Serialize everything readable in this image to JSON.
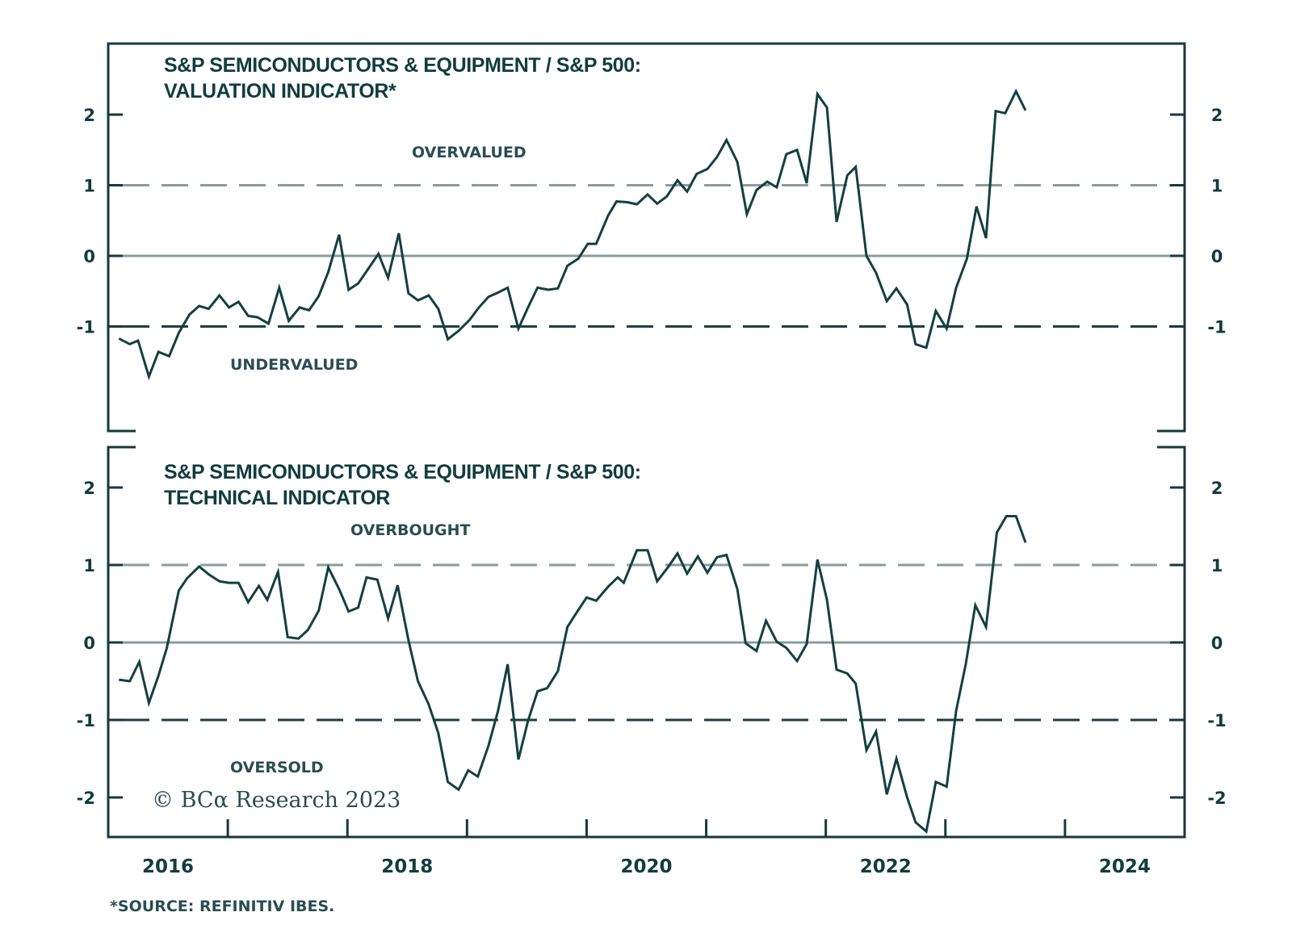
{
  "colors": {
    "axis": "#16393b",
    "series": "#143f42",
    "zero_line": "#8a9c9c",
    "upper_dash": "#8a9c9c",
    "lower_dash": "#1d3f41",
    "text": "#123c3e"
  },
  "footnote": "*SOURCE: REFINITIV IBES.",
  "copyright": "© BCα Research 2023",
  "chart_data": [
    {
      "type": "line",
      "title_line1": "S&P SEMICONDUCTORS & EQUIPMENT / S&P 500:",
      "title_line2": "VALUATION INDICATOR*",
      "upper_zone_label": "OVERVALUED",
      "lower_zone_label": "UNDERVALUED",
      "xlabel": "",
      "ylabel": "",
      "xlim": [
        2016,
        2025
      ],
      "ylim": [
        -2.4,
        2.5
      ],
      "yticks": [
        2,
        1,
        0,
        -1
      ],
      "ytick_labels": [
        "2",
        "1",
        "0",
        "-1"
      ],
      "reference_lines": [
        {
          "value": 1,
          "style": "dashed"
        },
        {
          "value": 0,
          "style": "solid"
        },
        {
          "value": -1,
          "style": "dashed"
        }
      ],
      "grid": false,
      "series": [
        {
          "name": "Valuation Indicator",
          "x": [
            2016.09,
            2016.18,
            2016.25,
            2016.34,
            2016.42,
            2016.51,
            2016.59,
            2016.68,
            2016.76,
            2016.84,
            2016.93,
            2017.01,
            2017.09,
            2017.17,
            2017.25,
            2017.34,
            2017.43,
            2017.51,
            2017.6,
            2017.68,
            2017.76,
            2017.84,
            2017.93,
            2018.01,
            2018.09,
            2018.18,
            2018.26,
            2018.34,
            2018.43,
            2018.51,
            2018.59,
            2018.68,
            2018.76,
            2018.84,
            2018.93,
            2019.02,
            2019.1,
            2019.18,
            2019.26,
            2019.34,
            2019.43,
            2019.51,
            2019.59,
            2019.68,
            2019.76,
            2019.84,
            2019.93,
            2020.01,
            2020.08,
            2020.18,
            2020.25,
            2020.34,
            2020.42,
            2020.51,
            2020.59,
            2020.67,
            2020.76,
            2020.84,
            2020.92,
            2021.01,
            2021.09,
            2021.17,
            2021.26,
            2021.34,
            2021.42,
            2021.51,
            2021.59,
            2021.67,
            2021.76,
            2021.84,
            2021.93,
            2022.01,
            2022.09,
            2022.18,
            2022.25,
            2022.34,
            2022.42,
            2022.51,
            2022.59,
            2022.68,
            2022.75,
            2022.84,
            2022.92,
            2023.01,
            2023.09,
            2023.18,
            2023.26,
            2023.34,
            2023.42,
            2023.5,
            2023.59,
            2023.67
          ],
          "y": [
            -1.17,
            -1.25,
            -1.2,
            -1.71,
            -1.36,
            -1.42,
            -1.09,
            -0.83,
            -0.71,
            -0.75,
            -0.56,
            -0.73,
            -0.65,
            -0.85,
            -0.87,
            -0.96,
            -0.45,
            -0.92,
            -0.73,
            -0.77,
            -0.57,
            -0.23,
            0.3,
            -0.48,
            -0.39,
            -0.17,
            0.03,
            -0.31,
            0.32,
            -0.53,
            -0.63,
            -0.56,
            -0.75,
            -1.18,
            -1.06,
            -0.91,
            -0.73,
            -0.58,
            -0.52,
            -0.45,
            -1.03,
            -0.73,
            -0.45,
            -0.48,
            -0.46,
            -0.14,
            -0.04,
            0.17,
            0.17,
            0.57,
            0.77,
            0.76,
            0.73,
            0.87,
            0.74,
            0.84,
            1.07,
            0.91,
            1.16,
            1.23,
            1.4,
            1.64,
            1.33,
            0.59,
            0.93,
            1.05,
            0.97,
            1.44,
            1.5,
            1.03,
            2.29,
            2.1,
            0.48,
            1.14,
            1.26,
            0.0,
            -0.24,
            -0.64,
            -0.46,
            -0.69,
            -1.25,
            -1.3,
            -0.78,
            -1.03,
            -0.45,
            -0.04,
            0.7,
            0.25,
            2.05,
            2.02,
            2.33,
            2.06
          ]
        }
      ]
    },
    {
      "type": "line",
      "title_line1": "S&P SEMICONDUCTORS & EQUIPMENT / S&P 500:",
      "title_line2": "TECHNICAL INDICATOR",
      "upper_zone_label": "OVERBOUGHT",
      "lower_zone_label": "OVERSOLD",
      "xlabel": "",
      "ylabel": "",
      "xlim": [
        2016,
        2025
      ],
      "ylim": [
        -2.5,
        2.5
      ],
      "yticks": [
        2,
        1,
        0,
        -1,
        -2
      ],
      "ytick_labels": [
        "2",
        "1",
        "0",
        "-1",
        "-2"
      ],
      "xticks": [
        2017,
        2018,
        2019,
        2020,
        2021,
        2022,
        2023,
        2024
      ],
      "xtick_labels": [
        {
          "label": "2016",
          "at": 2016.5
        },
        {
          "label": "2018",
          "at": 2018.5
        },
        {
          "label": "2020",
          "at": 2020.5
        },
        {
          "label": "2022",
          "at": 2022.5
        },
        {
          "label": "2024",
          "at": 2024.5
        }
      ],
      "reference_lines": [
        {
          "value": 1,
          "style": "dashed"
        },
        {
          "value": 0,
          "style": "solid"
        },
        {
          "value": -1,
          "style": "dashed"
        }
      ],
      "grid": false,
      "series": [
        {
          "name": "Technical Indicator",
          "x": [
            2016.09,
            2016.18,
            2016.26,
            2016.34,
            2016.42,
            2016.49,
            2016.59,
            2016.66,
            2016.76,
            2016.84,
            2016.93,
            2017.01,
            2017.09,
            2017.17,
            2017.26,
            2017.33,
            2017.42,
            2017.5,
            2017.59,
            2017.67,
            2017.76,
            2017.84,
            2017.93,
            2018.01,
            2018.09,
            2018.16,
            2018.25,
            2018.34,
            2018.42,
            2018.51,
            2018.59,
            2018.68,
            2018.76,
            2018.84,
            2018.93,
            2019.01,
            2019.09,
            2019.18,
            2019.26,
            2019.34,
            2019.43,
            2019.51,
            2019.59,
            2019.67,
            2019.76,
            2019.84,
            2019.91,
            2020.0,
            2020.08,
            2020.18,
            2020.26,
            2020.31,
            2020.42,
            2020.51,
            2020.59,
            2020.68,
            2020.76,
            2020.84,
            2020.93,
            2021.01,
            2021.09,
            2021.17,
            2021.26,
            2021.33,
            2021.42,
            2021.5,
            2021.59,
            2021.67,
            2021.76,
            2021.84,
            2021.93,
            2022.01,
            2022.09,
            2022.18,
            2022.25,
            2022.34,
            2022.42,
            2022.51,
            2022.59,
            2022.68,
            2022.75,
            2022.84,
            2022.92,
            2023.01,
            2023.09,
            2023.17,
            2023.25,
            2023.34,
            2023.43,
            2023.51,
            2023.59,
            2023.67
          ],
          "y": [
            -0.48,
            -0.5,
            -0.25,
            -0.78,
            -0.43,
            -0.07,
            0.67,
            0.83,
            0.98,
            0.88,
            0.79,
            0.77,
            0.77,
            0.52,
            0.73,
            0.55,
            0.91,
            0.07,
            0.05,
            0.16,
            0.41,
            0.97,
            0.69,
            0.4,
            0.45,
            0.84,
            0.81,
            0.31,
            0.74,
            0.03,
            -0.5,
            -0.8,
            -1.17,
            -1.8,
            -1.9,
            -1.65,
            -1.73,
            -1.33,
            -0.88,
            -0.28,
            -1.51,
            -1.01,
            -0.63,
            -0.59,
            -0.37,
            0.2,
            0.37,
            0.58,
            0.54,
            0.72,
            0.84,
            0.77,
            1.19,
            1.19,
            0.79,
            0.97,
            1.15,
            0.89,
            1.11,
            0.9,
            1.1,
            1.13,
            0.69,
            -0.01,
            -0.11,
            0.28,
            0.01,
            -0.07,
            -0.24,
            -0.02,
            1.07,
            0.55,
            -0.35,
            -0.4,
            -0.53,
            -1.39,
            -1.15,
            -1.96,
            -1.5,
            -2.0,
            -2.32,
            -2.44,
            -1.8,
            -1.86,
            -0.88,
            -0.28,
            0.48,
            0.2,
            1.42,
            1.63,
            1.63,
            1.29
          ]
        }
      ]
    }
  ]
}
